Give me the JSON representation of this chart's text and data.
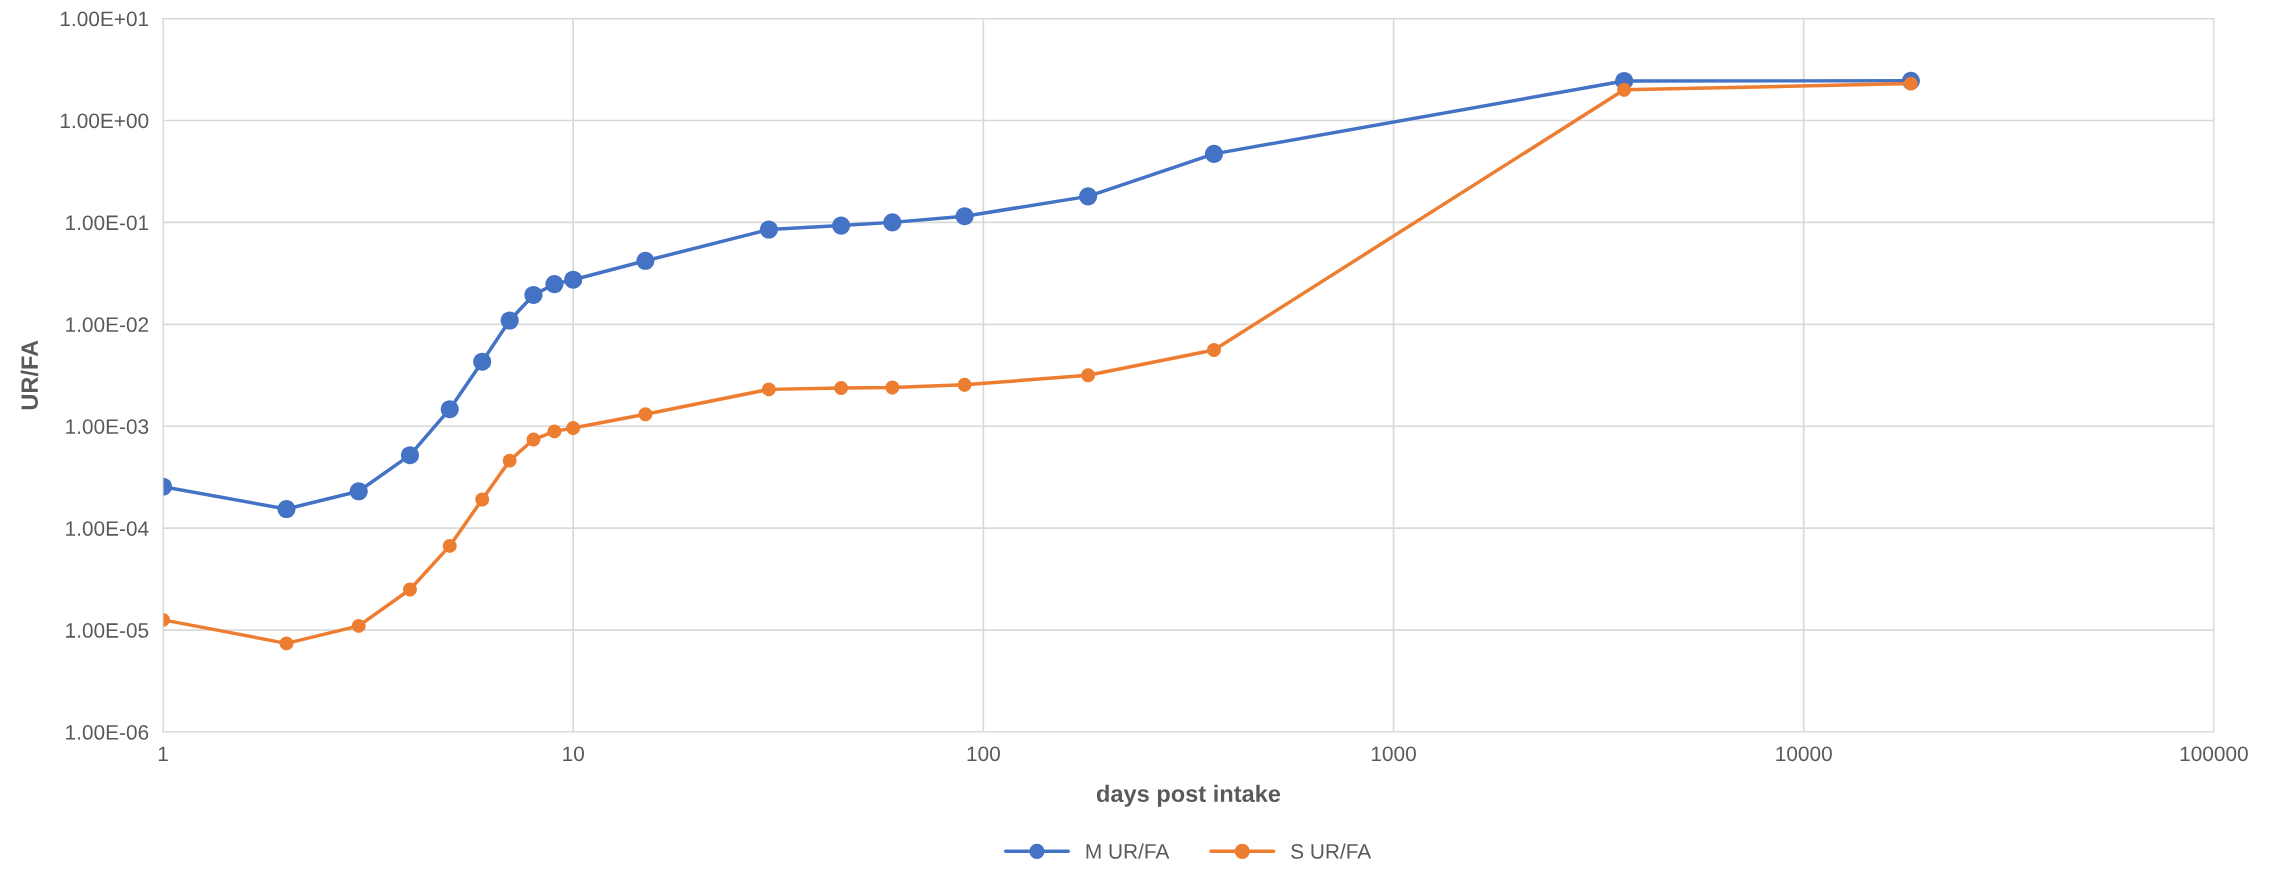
{
  "chart_data": {
    "type": "line",
    "xlabel": "days post intake",
    "ylabel": "UR/FA",
    "log": "xy",
    "x": [
      1,
      2,
      3,
      4,
      5,
      6,
      7,
      8,
      9,
      10,
      15,
      30,
      45,
      60,
      90,
      180,
      365,
      3650,
      18250
    ],
    "series": [
      {
        "name": "M UR/FA",
        "color": "#4472c4",
        "values": [
          0.000255,
          0.000154,
          0.00023,
          0.00052,
          0.00147,
          0.0043,
          0.0109,
          0.0194,
          0.0248,
          0.0274,
          0.042,
          0.085,
          0.093,
          0.1,
          0.115,
          0.18,
          0.47,
          2.44,
          2.45
        ]
      },
      {
        "name": "S UR/FA",
        "color": "#ed7d31",
        "values": [
          1.26e-05,
          7.4e-06,
          1.1e-05,
          2.5e-05,
          6.7e-05,
          0.000191,
          0.00046,
          0.00074,
          0.00089,
          0.00096,
          0.00131,
          0.0023,
          0.00237,
          0.0024,
          0.00255,
          0.00316,
          0.0056,
          2.0,
          2.3
        ]
      }
    ],
    "xlim": [
      1,
      100000
    ],
    "xticks": [
      1,
      10,
      100,
      1000,
      10000,
      100000
    ],
    "ylim": [
      1e-06,
      10
    ],
    "yticks": [
      {
        "value": 1e-06,
        "label": "1.00E-06"
      },
      {
        "value": 1e-05,
        "label": "1.00E-05"
      },
      {
        "value": 0.0001,
        "label": "1.00E-04"
      },
      {
        "value": 0.001,
        "label": "1.00E-03"
      },
      {
        "value": 0.01,
        "label": "1.00E-02"
      },
      {
        "value": 0.1,
        "label": "1.00E-01"
      },
      {
        "value": 1,
        "label": "1.00E+00"
      },
      {
        "value": 10,
        "label": "1.00E+01"
      }
    ],
    "grid": true,
    "legend": "bottom",
    "marker": "circle",
    "line_style": "solid"
  }
}
